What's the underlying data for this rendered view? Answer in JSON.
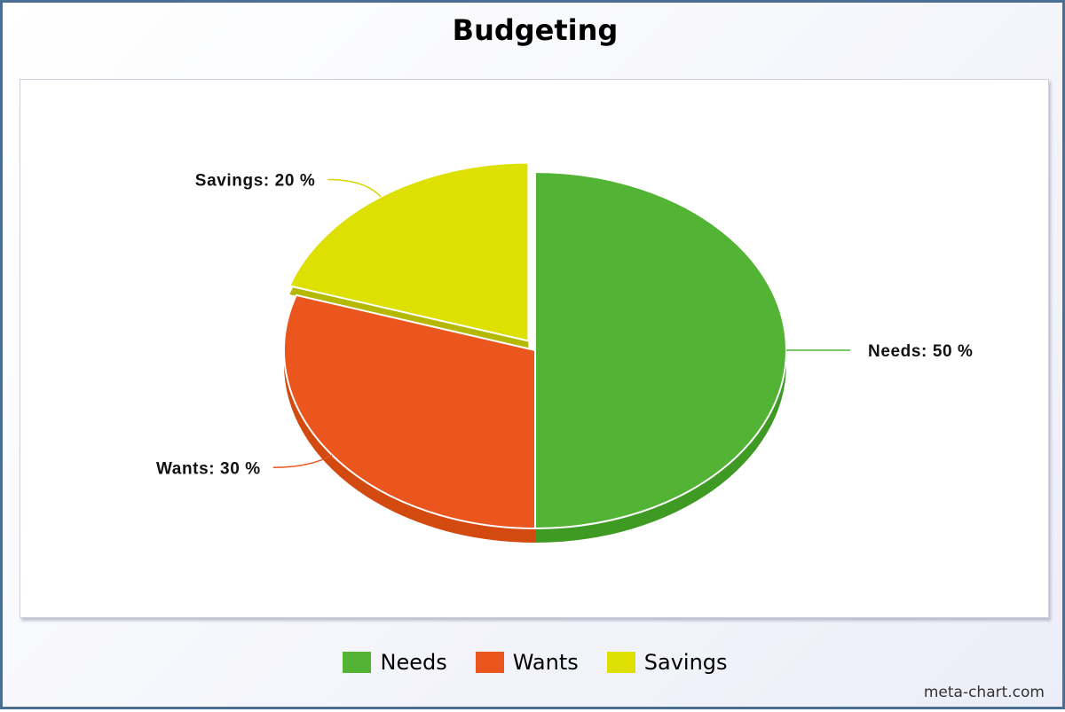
{
  "chart_data": {
    "type": "pie",
    "title": "Budgeting",
    "slices": [
      {
        "label": "Needs",
        "value": 50,
        "color": "#52b335",
        "side_color": "#3e9a23",
        "data_label": "Needs: 50 %",
        "exploded": false
      },
      {
        "label": "Wants",
        "value": 30,
        "color": "#eb561e",
        "side_color": "#d24a10",
        "data_label": "Wants: 30 %",
        "exploded": false
      },
      {
        "label": "Savings",
        "value": 20,
        "color": "#dde000",
        "side_color": "#b5b800",
        "data_label": "Savings: 20 %",
        "exploded": true
      }
    ],
    "legend": {
      "position": "bottom",
      "items": [
        "Needs",
        "Wants",
        "Savings"
      ]
    },
    "style": "3d"
  },
  "watermark": "meta-chart.com"
}
